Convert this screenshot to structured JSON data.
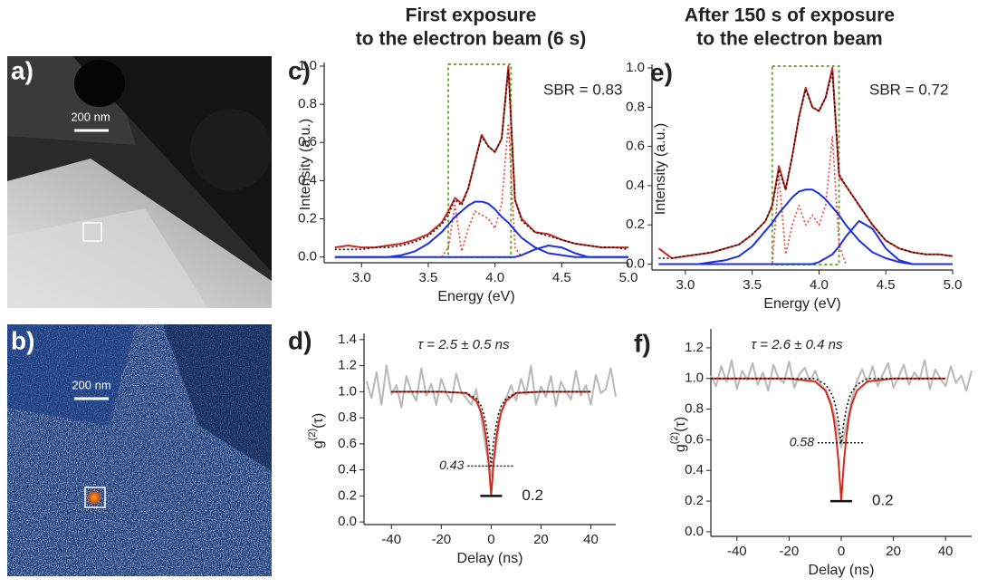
{
  "column_titles": [
    [
      "First exposure",
      "to the electron beam (6 s)"
    ],
    [
      "After 150 s of exposure",
      "to the electron beam"
    ]
  ],
  "images": [
    {
      "label": "a)",
      "scale_bar": "200 nm"
    },
    {
      "label": "b)",
      "scale_bar": "200 nm"
    }
  ],
  "chart_data": [
    {
      "type": "line",
      "label": "c)",
      "annotation": "SBR = 0.83",
      "x_label": "Energy (eV)",
      "y_label": "Intensity (a.u.)",
      "xlim": [
        2.72,
        5.0
      ],
      "ylim": [
        -0.03,
        1.0
      ],
      "xticks": [
        {
          "value": 3,
          "label": "3.0"
        },
        3.5,
        {
          "value": 4,
          "label": "4.0"
        },
        4.5,
        {
          "value": 5,
          "label": "5.0"
        }
      ],
      "yticks": [
        {
          "value": 0,
          "label": "0.0"
        },
        0.2,
        0.4,
        0.6,
        0.8,
        {
          "value": 1,
          "label": "1.0"
        }
      ],
      "window": [
        3.65,
        4.12
      ],
      "window_color": "#6aa832",
      "x": [
        2.8,
        2.9,
        3.0,
        3.1,
        3.2,
        3.3,
        3.4,
        3.5,
        3.6,
        3.65,
        3.7,
        3.75,
        3.8,
        3.85,
        3.9,
        3.95,
        4.0,
        4.05,
        4.1,
        4.15,
        4.2,
        4.3,
        4.4,
        4.5,
        4.6,
        4.7,
        4.8,
        4.9,
        5.0
      ],
      "series": [
        {
          "color": "#e8443a",
          "style": "dotted",
          "values": [
            null,
            null,
            null,
            null,
            null,
            null,
            null,
            null,
            0,
            0.05,
            0.27,
            0.03,
            0.15,
            0.24,
            0.22,
            0.2,
            0.15,
            0.28,
            0.7,
            0.05,
            0,
            null,
            null,
            null,
            null,
            null,
            null,
            null,
            null
          ]
        },
        {
          "color": "#1f2fe0",
          "style": "solid",
          "values": [
            0,
            0,
            0,
            0,
            0,
            0.01,
            0.03,
            0.07,
            0.13,
            0.17,
            0.21,
            0.24,
            0.27,
            0.29,
            0.29,
            0.28,
            0.25,
            0.21,
            0.18,
            0.14,
            0.1,
            0.05,
            0.02,
            0.01,
            0,
            0,
            0,
            0,
            0
          ]
        },
        {
          "color": "#1f2fe0",
          "style": "solid",
          "values": [
            0,
            0,
            0,
            0,
            0,
            0,
            0,
            0,
            0,
            0,
            0,
            0,
            0,
            0,
            0,
            0,
            0,
            0,
            0,
            0,
            0.01,
            0.04,
            0.06,
            0.05,
            0.02,
            0,
            0,
            0,
            0
          ]
        },
        {
          "color": "#c8281e",
          "style": "solid",
          "values": [
            0.05,
            0.06,
            0.05,
            0.05,
            0.06,
            0.07,
            0.09,
            0.12,
            0.18,
            0.24,
            0.31,
            0.28,
            0.36,
            0.5,
            0.64,
            0.58,
            0.55,
            0.62,
            1.0,
            0.3,
            0.2,
            0.13,
            0.12,
            0.09,
            0.07,
            0.06,
            0.05,
            0.05,
            0.05
          ]
        },
        {
          "color": "#111111",
          "style": "dotted",
          "values": [
            0.04,
            0.04,
            0.04,
            0.05,
            0.05,
            0.06,
            0.08,
            0.11,
            0.17,
            0.22,
            0.3,
            0.27,
            0.36,
            0.5,
            0.63,
            0.58,
            0.55,
            0.62,
            0.98,
            0.3,
            0.19,
            0.13,
            0.11,
            0.09,
            0.07,
            0.06,
            0.05,
            0.05,
            0.04
          ]
        }
      ]
    },
    {
      "type": "line",
      "label": "d)",
      "annotation": "τ = 2.5 ± 0.5 ns",
      "x_label": "Delay (ns)",
      "y_label": {
        "base": "g",
        "superscript": "(2)",
        "argument": "(τ)"
      },
      "xlim": [
        -51,
        50
      ],
      "ylim": [
        -0.02,
        1.42
      ],
      "xticks": [
        -40,
        -20,
        0,
        20,
        40
      ],
      "yticks": [
        {
          "value": 0,
          "label": "0.0"
        },
        0.2,
        0.4,
        0.6,
        0.8,
        {
          "value": 1,
          "label": "1.0"
        },
        1.2,
        1.4
      ],
      "fit_minimum": 0.43,
      "model_minimum": 0.2,
      "series": [
        {
          "color": "#b8b8b8",
          "style": "solid",
          "x": [
            -50,
            -48,
            -46,
            -44,
            -42,
            -40,
            -38,
            -36,
            -34,
            -32,
            -30,
            -28,
            -26,
            -24,
            -22,
            -20,
            -18,
            -16,
            -14,
            -12,
            -10,
            -8,
            -6,
            -4,
            -2,
            0,
            2,
            4,
            6,
            8,
            10,
            12,
            14,
            16,
            18,
            20,
            22,
            24,
            26,
            28,
            30,
            32,
            34,
            36,
            38,
            40,
            42,
            44,
            46,
            48,
            50
          ],
          "values": [
            1.08,
            0.95,
            1.15,
            0.9,
            1.2,
            0.98,
            1.05,
            0.88,
            1.12,
            1.0,
            0.93,
            1.18,
            0.97,
            1.06,
            0.9,
            1.1,
            0.99,
            0.92,
            1.14,
            1.0,
            0.95,
            0.9,
            1.02,
            0.8,
            0.55,
            0.35,
            0.58,
            0.85,
            0.95,
            1.05,
            0.93,
            1.1,
            0.98,
            1.2,
            0.9,
            1.04,
            0.96,
            1.12,
            0.89,
            1.08,
            1.0,
            0.94,
            1.16,
            0.97,
            1.05,
            0.9,
            1.13,
            0.99,
            1.02,
            1.18,
            0.96
          ]
        },
        {
          "color": "#d42a1e",
          "style": "solid",
          "x": [
            -40,
            -20,
            -10,
            -6,
            -4,
            -3,
            -2,
            -1,
            0,
            1,
            2,
            3,
            4,
            6,
            10,
            20,
            40
          ],
          "values": [
            1.0,
            1.0,
            0.99,
            0.93,
            0.84,
            0.76,
            0.64,
            0.46,
            0.2,
            0.46,
            0.64,
            0.76,
            0.84,
            0.93,
            0.99,
            1.0,
            1.0
          ]
        },
        {
          "color": "#111111",
          "style": "dotted",
          "x": [
            -40,
            -20,
            -10,
            -6,
            -4,
            -3,
            -2,
            -1,
            0,
            1,
            2,
            3,
            4,
            6,
            10,
            20,
            40
          ],
          "values": [
            1.0,
            1.0,
            0.99,
            0.95,
            0.89,
            0.83,
            0.74,
            0.62,
            0.43,
            0.62,
            0.74,
            0.83,
            0.89,
            0.95,
            0.99,
            1.0,
            1.0
          ]
        }
      ]
    },
    {
      "type": "line",
      "label": "e)",
      "annotation": "SBR = 0.72",
      "x_label": "Energy (eV)",
      "y_label": "Intensity (a.u.)",
      "xlim": [
        2.75,
        5.0
      ],
      "ylim": [
        -0.03,
        1.0
      ],
      "xticks": [
        {
          "value": 3,
          "label": "3.0"
        },
        3.5,
        {
          "value": 4,
          "label": "4.0"
        },
        4.5,
        {
          "value": 5,
          "label": "5.0"
        }
      ],
      "yticks": [
        {
          "value": 0,
          "label": "0.0"
        },
        0.2,
        0.4,
        0.6,
        0.8,
        {
          "value": 1,
          "label": "1.0"
        }
      ],
      "window": [
        3.65,
        4.15
      ],
      "window_color": "#6aa832",
      "x": [
        2.8,
        2.9,
        3.0,
        3.1,
        3.2,
        3.3,
        3.4,
        3.5,
        3.6,
        3.65,
        3.7,
        3.75,
        3.8,
        3.85,
        3.9,
        3.95,
        4.0,
        4.05,
        4.1,
        4.15,
        4.2,
        4.3,
        4.4,
        4.5,
        4.6,
        4.7,
        4.8,
        4.9,
        5.0
      ],
      "series": [
        {
          "color": "#e8443a",
          "style": "dotted",
          "values": [
            null,
            null,
            null,
            null,
            null,
            null,
            null,
            null,
            0,
            0,
            0.45,
            0.05,
            0.2,
            0.3,
            0.2,
            0.25,
            0.2,
            0.3,
            0.65,
            0.1,
            0,
            null,
            null,
            null,
            null,
            null,
            null,
            null,
            null
          ]
        },
        {
          "color": "#1f2fe0",
          "style": "solid",
          "values": [
            0,
            0,
            0,
            0,
            0.01,
            0.02,
            0.04,
            0.09,
            0.17,
            0.21,
            0.26,
            0.3,
            0.34,
            0.37,
            0.38,
            0.38,
            0.36,
            0.33,
            0.29,
            0.25,
            0.2,
            0.12,
            0.06,
            0.03,
            0.01,
            0,
            0,
            0,
            0
          ]
        },
        {
          "color": "#1f2fe0",
          "style": "solid",
          "values": [
            0,
            0,
            0,
            0,
            0,
            0,
            0,
            0,
            0,
            0,
            0,
            0,
            0,
            0,
            0,
            0,
            0.01,
            0.03,
            0.05,
            0.09,
            0.14,
            0.22,
            0.18,
            0.08,
            0.02,
            0,
            0,
            0,
            0
          ]
        },
        {
          "color": "#c8281e",
          "style": "solid",
          "values": [
            0.08,
            0.03,
            0.04,
            0.05,
            0.06,
            0.08,
            0.1,
            0.15,
            0.22,
            0.3,
            0.5,
            0.38,
            0.55,
            0.75,
            0.9,
            0.8,
            0.78,
            0.85,
            1.0,
            0.45,
            0.4,
            0.3,
            0.2,
            0.12,
            0.08,
            0.06,
            0.05,
            0.05,
            0.04
          ]
        },
        {
          "color": "#111111",
          "style": "dotted",
          "values": [
            0.03,
            0.03,
            0.04,
            0.05,
            0.06,
            0.08,
            0.1,
            0.15,
            0.22,
            0.3,
            0.48,
            0.38,
            0.55,
            0.75,
            0.89,
            0.8,
            0.78,
            0.85,
            0.98,
            0.46,
            0.4,
            0.3,
            0.2,
            0.12,
            0.08,
            0.06,
            0.05,
            0.05,
            0.04
          ]
        }
      ]
    },
    {
      "type": "line",
      "label": "f)",
      "annotation": "τ = 2.6 ± 0.4 ns",
      "x_label": "Delay (ns)",
      "y_label": {
        "base": "g",
        "superscript": "(2)",
        "argument": "(τ)"
      },
      "xlim": [
        -50,
        50
      ],
      "ylim": [
        -0.03,
        1.3
      ],
      "xticks": [
        -40,
        -20,
        0,
        20,
        40
      ],
      "yticks": [
        {
          "value": 0,
          "label": "0.0"
        },
        0.2,
        0.4,
        0.6,
        0.8,
        {
          "value": 1,
          "label": "1.0"
        },
        1.2
      ],
      "fit_minimum": 0.58,
      "model_minimum": 0.2,
      "series": [
        {
          "color": "#b8b8b8",
          "style": "solid",
          "x": [
            -50,
            -48,
            -46,
            -44,
            -42,
            -40,
            -38,
            -36,
            -34,
            -32,
            -30,
            -28,
            -26,
            -24,
            -22,
            -20,
            -18,
            -16,
            -14,
            -12,
            -10,
            -8,
            -6,
            -4,
            -2,
            0,
            2,
            4,
            6,
            8,
            10,
            12,
            14,
            16,
            18,
            20,
            22,
            24,
            26,
            28,
            30,
            32,
            34,
            36,
            38,
            40,
            42,
            44,
            46,
            48,
            50
          ],
          "values": [
            1.02,
            0.95,
            1.08,
            0.98,
            1.12,
            0.93,
            1.05,
            0.99,
            1.1,
            0.96,
            1.04,
            0.92,
            1.09,
            1.0,
            0.97,
            1.11,
            0.94,
            1.03,
            1.07,
            0.98,
            1.05,
            0.96,
            0.93,
            0.85,
            0.72,
            0.55,
            0.7,
            0.86,
            0.98,
            1.06,
            0.97,
            1.08,
            0.95,
            1.03,
            1.1,
            0.94,
            1.01,
            1.09,
            0.96,
            1.04,
            0.99,
            1.12,
            0.93,
            1.06,
            1.0,
            0.95,
            1.08,
            0.97,
            1.02,
            0.92,
            1.05
          ]
        },
        {
          "color": "#d42a1e",
          "style": "solid",
          "x": [
            -50,
            -20,
            -10,
            -6,
            -4,
            -3,
            -2,
            -1,
            0,
            1,
            2,
            3,
            4,
            6,
            10,
            20,
            40
          ],
          "values": [
            1.0,
            1.0,
            0.98,
            0.92,
            0.83,
            0.75,
            0.63,
            0.45,
            0.2,
            0.45,
            0.63,
            0.75,
            0.83,
            0.92,
            0.98,
            1.0,
            1.0
          ]
        },
        {
          "color": "#111111",
          "style": "dotted",
          "x": [
            -50,
            -20,
            -10,
            -6,
            -4,
            -3,
            -2,
            -1,
            0,
            1,
            2,
            3,
            4,
            6,
            10,
            20,
            40
          ],
          "values": [
            1.0,
            1.0,
            1.0,
            0.96,
            0.91,
            0.87,
            0.81,
            0.71,
            0.58,
            0.71,
            0.81,
            0.87,
            0.91,
            0.96,
            1.0,
            1.0,
            1.0
          ]
        }
      ]
    }
  ]
}
